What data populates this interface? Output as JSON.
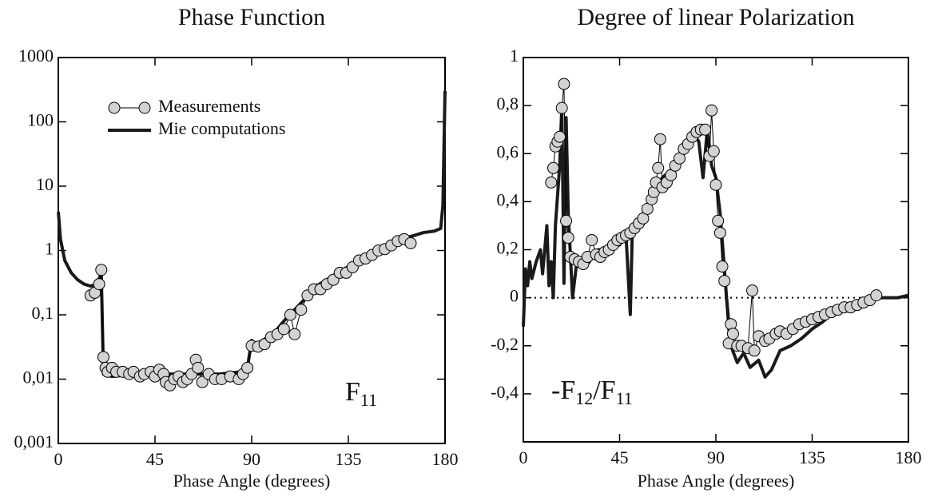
{
  "chart_data": [
    {
      "type": "line",
      "title": "Phase Function",
      "x_label": "Phase Angle (degrees)",
      "xlim": [
        0,
        180
      ],
      "xticks": [
        0,
        45,
        90,
        135,
        180
      ],
      "ylim": [
        0.001,
        1000
      ],
      "log_y": true,
      "yticks": [
        {
          "value": 0.001,
          "label": "0,001"
        },
        {
          "value": 0.01,
          "label": "0,01"
        },
        {
          "value": 0.1,
          "label": "0,1"
        },
        1,
        10,
        100,
        1000
      ],
      "legend": "upper left",
      "annotation": [
        {
          "text": "F"
        },
        {
          "text": "11",
          "sub": true
        }
      ],
      "series": [
        {
          "name": "Measurements",
          "color": "#000000",
          "marker": true,
          "x": [
            15,
            17,
            19,
            20,
            21,
            22,
            23,
            25,
            27,
            30,
            33,
            35,
            38,
            40,
            43,
            45,
            47,
            49,
            50,
            52,
            54,
            56,
            58,
            60,
            62,
            64,
            65,
            67,
            70,
            73,
            76,
            80,
            84,
            86,
            88,
            90,
            93,
            96,
            99,
            102,
            105,
            108,
            110,
            113,
            116,
            119,
            122,
            125,
            128,
            131,
            134,
            137,
            140,
            143,
            146,
            149,
            152,
            155,
            158,
            161,
            164
          ],
          "values": [
            0.2,
            0.22,
            0.3,
            0.5,
            0.022,
            0.015,
            0.013,
            0.015,
            0.013,
            0.013,
            0.012,
            0.013,
            0.011,
            0.012,
            0.013,
            0.011,
            0.014,
            0.012,
            0.009,
            0.008,
            0.01,
            0.011,
            0.009,
            0.01,
            0.012,
            0.02,
            0.015,
            0.009,
            0.012,
            0.01,
            0.01,
            0.011,
            0.01,
            0.012,
            0.015,
            0.033,
            0.032,
            0.035,
            0.045,
            0.05,
            0.06,
            0.1,
            0.05,
            0.12,
            0.2,
            0.25,
            0.25,
            0.3,
            0.35,
            0.45,
            0.45,
            0.55,
            0.7,
            0.75,
            0.85,
            1.0,
            1.05,
            1.2,
            1.4,
            1.5,
            1.3
          ]
        },
        {
          "name": "Mie computations",
          "color": "#1a1a1a",
          "marker": false,
          "x": [
            0,
            1,
            3,
            6,
            9,
            12,
            15,
            18,
            20,
            21,
            25,
            35,
            45,
            55,
            65,
            75,
            85,
            88,
            90,
            92,
            95,
            100,
            105,
            110,
            115,
            120,
            125,
            130,
            140,
            150,
            160,
            170,
            175,
            178,
            179,
            180
          ],
          "values": [
            4,
            1.5,
            0.7,
            0.45,
            0.35,
            0.3,
            0.28,
            0.3,
            0.45,
            0.012,
            0.011,
            0.012,
            0.012,
            0.012,
            0.012,
            0.012,
            0.013,
            0.015,
            0.04,
            0.035,
            0.04,
            0.05,
            0.08,
            0.12,
            0.18,
            0.28,
            0.35,
            0.45,
            0.7,
            1.0,
            1.5,
            1.9,
            2,
            2.2,
            5,
            300
          ]
        }
      ]
    },
    {
      "type": "line",
      "title": "Degree of linear Polarization",
      "x_label": "Phase Angle (degrees)",
      "xlim": [
        0,
        180
      ],
      "xticks": [
        0,
        45,
        90,
        135,
        180
      ],
      "ylim": [
        -0.6,
        1
      ],
      "log_y": false,
      "yticks": [
        {
          "value": -0.4,
          "label": "-0,4"
        },
        {
          "value": -0.2,
          "label": "-0,2"
        },
        0,
        {
          "value": 0.2,
          "label": "0,2"
        },
        {
          "value": 0.4,
          "label": "0,4"
        },
        {
          "value": 0.6,
          "label": "0,6"
        },
        {
          "value": 0.8,
          "label": "0,8"
        },
        1
      ],
      "reference_line": 0,
      "annotation": [
        {
          "text": "-F"
        },
        {
          "text": "12",
          "sub": true
        },
        {
          "text": "/F"
        },
        {
          "text": "11",
          "sub": true
        }
      ],
      "series": [
        {
          "color": "#000000",
          "marker": true,
          "x": [
            13,
            14,
            15,
            16,
            17,
            18,
            19,
            20,
            21,
            22,
            24,
            26,
            28,
            30,
            32,
            34,
            36,
            38,
            40,
            42,
            44,
            46,
            48,
            50,
            52,
            54,
            56,
            58,
            60,
            61,
            62,
            63,
            64,
            65,
            67,
            69,
            71,
            73,
            75,
            77,
            79,
            81,
            83,
            85,
            87,
            88,
            89,
            90,
            91,
            92,
            93,
            94,
            96,
            97,
            98,
            100,
            102,
            105,
            107,
            108,
            110,
            113,
            115,
            118,
            120,
            123,
            126,
            129,
            132,
            135,
            138,
            141,
            144,
            147,
            150,
            153,
            156,
            159,
            162,
            165
          ],
          "values": [
            0.48,
            0.54,
            0.63,
            0.65,
            0.67,
            0.79,
            0.89,
            0.32,
            0.25,
            0.17,
            0.16,
            0.15,
            0.14,
            0.17,
            0.24,
            0.18,
            0.17,
            0.19,
            0.2,
            0.22,
            0.24,
            0.25,
            0.26,
            0.27,
            0.29,
            0.31,
            0.33,
            0.37,
            0.41,
            0.44,
            0.48,
            0.54,
            0.66,
            0.46,
            0.48,
            0.51,
            0.55,
            0.58,
            0.62,
            0.64,
            0.67,
            0.69,
            0.7,
            0.7,
            0.59,
            0.78,
            0.61,
            0.47,
            0.32,
            0.27,
            0.13,
            0.07,
            -0.19,
            -0.11,
            -0.15,
            -0.2,
            -0.2,
            -0.21,
            0.03,
            -0.22,
            -0.16,
            -0.18,
            -0.17,
            -0.15,
            -0.14,
            -0.15,
            -0.13,
            -0.11,
            -0.1,
            -0.09,
            -0.08,
            -0.07,
            -0.06,
            -0.05,
            -0.04,
            -0.04,
            -0.03,
            -0.02,
            -0.01,
            0.01
          ]
        },
        {
          "color": "#1a1a1a",
          "marker": false,
          "x": [
            0,
            1,
            2,
            3,
            4,
            6,
            8,
            9,
            11,
            12,
            13,
            14,
            15,
            17,
            18,
            19,
            20,
            21,
            22,
            23,
            25,
            30,
            35,
            40,
            45,
            48,
            50,
            51,
            55,
            60,
            65,
            70,
            75,
            80,
            82,
            84,
            86,
            88,
            90,
            92,
            95,
            97,
            100,
            103,
            106,
            110,
            113,
            116,
            120,
            125,
            130,
            135,
            140,
            145,
            150,
            155,
            160,
            165,
            170,
            175,
            180
          ],
          "values": [
            -0.12,
            0.12,
            0.05,
            0.15,
            0.08,
            0.15,
            0.2,
            0.1,
            0.3,
            0.05,
            0.15,
            0.0,
            0.3,
            0.55,
            0.8,
            0.06,
            0.75,
            0.35,
            0.18,
            0.0,
            0.15,
            0.14,
            0.2,
            0.2,
            0.22,
            0.26,
            -0.07,
            0.3,
            0.33,
            0.42,
            0.5,
            0.54,
            0.6,
            0.68,
            0.65,
            0.5,
            0.7,
            0.55,
            0.5,
            0.35,
            0.0,
            -0.2,
            -0.27,
            -0.23,
            -0.29,
            -0.26,
            -0.33,
            -0.3,
            -0.22,
            -0.2,
            -0.17,
            -0.13,
            -0.1,
            -0.06,
            -0.05,
            -0.04,
            -0.02,
            0.0,
            0.0,
            0.0,
            0.01
          ]
        }
      ]
    }
  ]
}
